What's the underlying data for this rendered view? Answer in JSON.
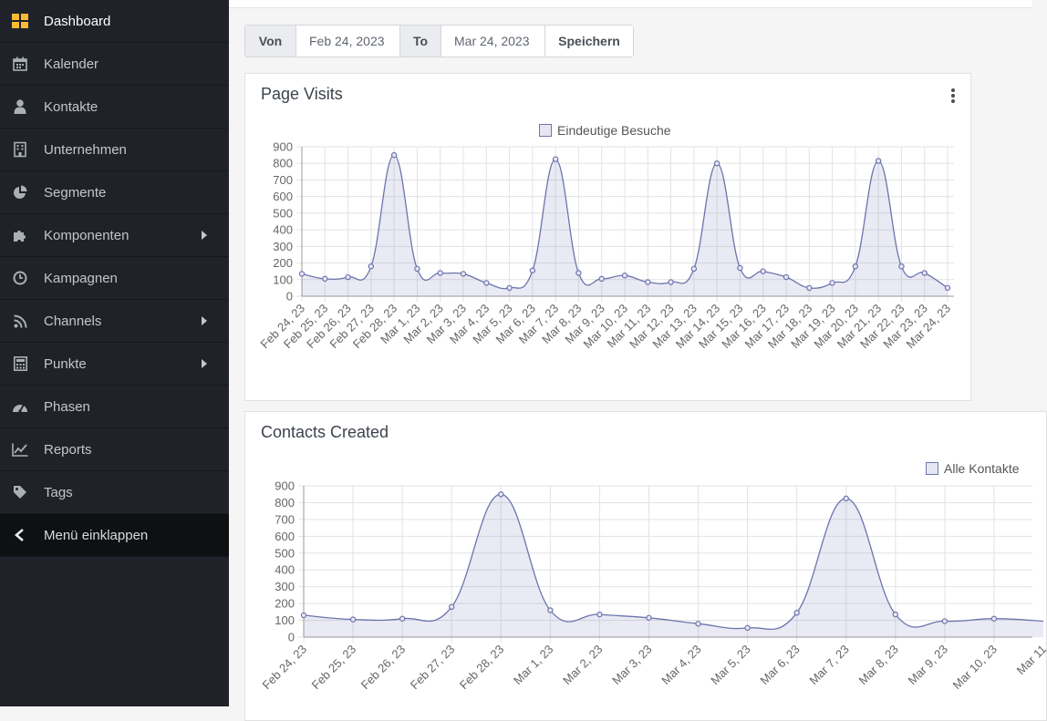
{
  "sidebar": {
    "items": [
      {
        "label": "Dashboard",
        "icon": "dashboard-icon",
        "active": true
      },
      {
        "label": "Kalender",
        "icon": "calendar-icon"
      },
      {
        "label": "Kontakte",
        "icon": "user-icon"
      },
      {
        "label": "Unternehmen",
        "icon": "building-icon"
      },
      {
        "label": "Segmente",
        "icon": "pie-chart-icon"
      },
      {
        "label": "Komponenten",
        "icon": "puzzle-icon",
        "submenu": true
      },
      {
        "label": "Kampagnen",
        "icon": "clock-icon"
      },
      {
        "label": "Channels",
        "icon": "rss-icon",
        "submenu": true
      },
      {
        "label": "Punkte",
        "icon": "calculator-icon",
        "submenu": true
      },
      {
        "label": "Phasen",
        "icon": "tachometer-icon"
      },
      {
        "label": "Reports",
        "icon": "line-chart-icon"
      },
      {
        "label": "Tags",
        "icon": "tag-icon"
      }
    ],
    "collapse_label": "Menü einklappen",
    "accent_color": "#fdb933"
  },
  "date_filter": {
    "from_label": "Von",
    "from_value": "Feb 24, 2023",
    "to_label": "To",
    "to_value": "Mar 24, 2023",
    "save_label": "Speichern"
  },
  "panels": {
    "page_visits": {
      "title": "Page Visits"
    },
    "contacts_created": {
      "title": "Contacts Created"
    }
  },
  "chart_data": [
    {
      "type": "area",
      "title": "Page Visits",
      "categories": [
        "Feb 24, 23",
        "Feb 25, 23",
        "Feb 26, 23",
        "Feb 27, 23",
        "Feb 28, 23",
        "Mar 1, 23",
        "Mar 2, 23",
        "Mar 3, 23",
        "Mar 4, 23",
        "Mar 5, 23",
        "Mar 6, 23",
        "Mar 7, 23",
        "Mar 8, 23",
        "Mar 9, 23",
        "Mar 10, 23",
        "Mar 11, 23",
        "Mar 12, 23",
        "Mar 13, 23",
        "Mar 14, 23",
        "Mar 15, 23",
        "Mar 16, 23",
        "Mar 17, 23",
        "Mar 18, 23",
        "Mar 19, 23",
        "Mar 20, 23",
        "Mar 21, 23",
        "Mar 22, 23",
        "Mar 23, 23",
        "Mar 24, 23"
      ],
      "series": [
        {
          "name": "Eindeutige Besuche",
          "values": [
            135,
            105,
            115,
            180,
            850,
            165,
            140,
            135,
            80,
            50,
            155,
            825,
            140,
            105,
            125,
            85,
            85,
            165,
            800,
            170,
            150,
            115,
            50,
            80,
            180,
            815,
            180,
            140,
            50
          ]
        }
      ],
      "ylim": [
        0,
        900
      ],
      "yticks": [
        0,
        100,
        200,
        300,
        400,
        500,
        600,
        700,
        800,
        900
      ],
      "grid": true,
      "legend_position": "top",
      "color": "#6d74ad"
    },
    {
      "type": "area",
      "title": "Contacts Created",
      "categories": [
        "Feb 24, 23",
        "Feb 25, 23",
        "Feb 26, 23",
        "Feb 27, 23",
        "Feb 28, 23",
        "Mar 1, 23",
        "Mar 2, 23",
        "Mar 3, 23",
        "Mar 4, 23",
        "Mar 5, 23",
        "Mar 6, 23",
        "Mar 7, 23",
        "Mar 8, 23",
        "Mar 9, 23",
        "Mar 10, 23",
        "Mar 11"
      ],
      "series": [
        {
          "name": "Alle Kontakte",
          "values": [
            130,
            105,
            110,
            180,
            850,
            160,
            135,
            115,
            80,
            55,
            145,
            825,
            135,
            95,
            110,
            95
          ]
        }
      ],
      "ylim": [
        0,
        900
      ],
      "yticks": [
        0,
        100,
        200,
        300,
        400,
        500,
        600,
        700,
        800,
        900
      ],
      "grid": true,
      "legend_position": "top-right",
      "color": "#6d74ad"
    }
  ]
}
